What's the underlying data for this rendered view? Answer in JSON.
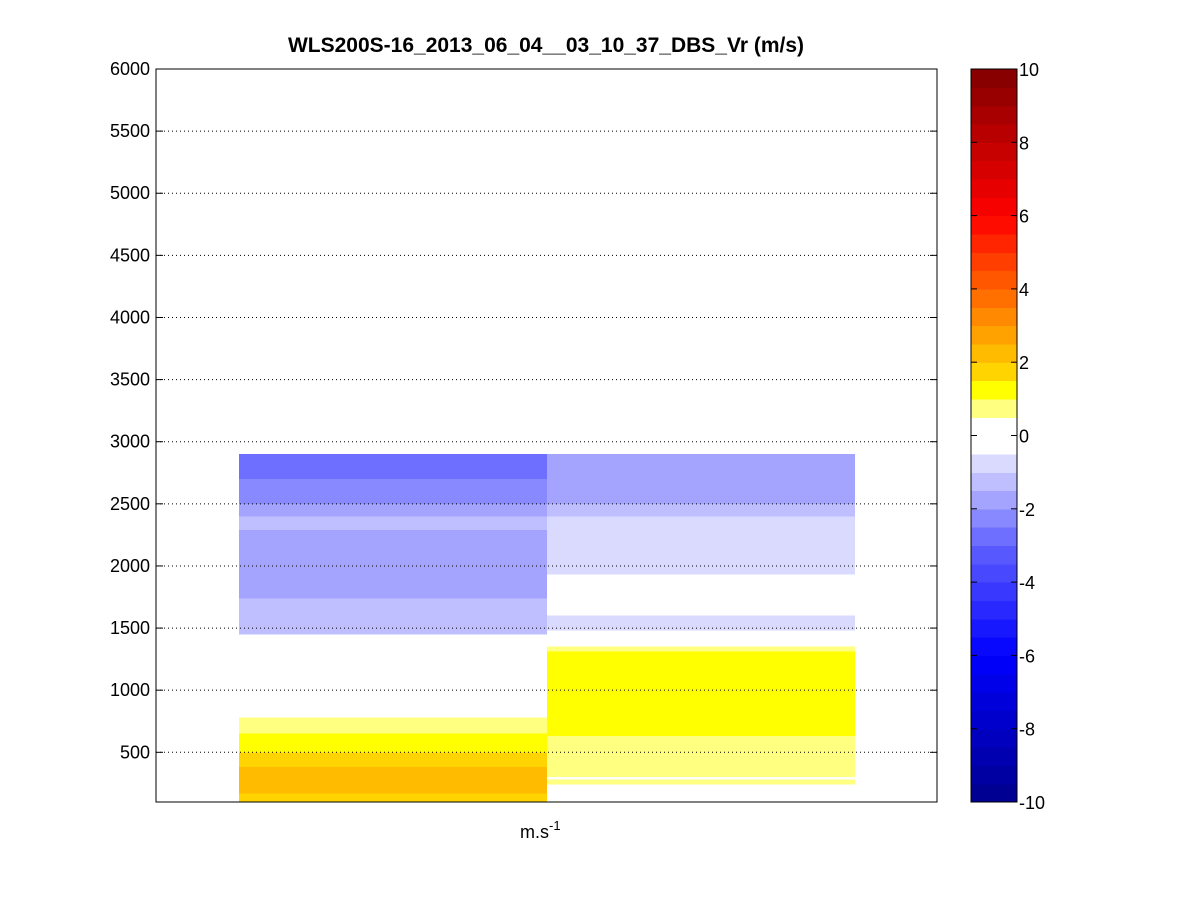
{
  "chart_data": {
    "type": "heatmap",
    "title": "WLS200S-16_2013_06_04__03_10_37_DBS_Vr (m/s)",
    "xlabel": "m.s",
    "xlabel_superscript": "-1",
    "ylabel": "",
    "ylim": [
      100,
      6000
    ],
    "yticks": [
      500,
      1000,
      1500,
      2000,
      2500,
      3000,
      3500,
      4000,
      4500,
      5000,
      5500,
      6000
    ],
    "grid": "horizontal dotted",
    "colorbar": {
      "range": [
        -10,
        10
      ],
      "ticks": [
        -10,
        -8,
        -6,
        -4,
        -2,
        0,
        2,
        4,
        6,
        8,
        10
      ],
      "colormap": "blue-white-yellow-red",
      "levels": 40
    },
    "columns": [
      {
        "segments": [
          {
            "y0": 100,
            "y1": 170,
            "v": 1.5
          },
          {
            "y0": 170,
            "y1": 380,
            "v": 2.0
          },
          {
            "y0": 380,
            "y1": 500,
            "v": 1.5
          },
          {
            "y0": 500,
            "y1": 650,
            "v": 1.1
          },
          {
            "y0": 650,
            "y1": 780,
            "v": 0.6
          },
          {
            "y0": 1100,
            "y1": 1450,
            "v": -0.4
          },
          {
            "y0": 1450,
            "y1": 1600,
            "v": -1.2
          },
          {
            "y0": 1600,
            "y1": 1740,
            "v": -1.5
          },
          {
            "y0": 1740,
            "y1": 2290,
            "v": -1.9
          },
          {
            "y0": 2290,
            "y1": 2400,
            "v": -1.5
          },
          {
            "y0": 2400,
            "y1": 2500,
            "v": -1.8
          },
          {
            "y0": 2500,
            "y1": 2700,
            "v": -2.1
          },
          {
            "y0": 2700,
            "y1": 2900,
            "v": -2.6
          }
        ]
      },
      {
        "segments": [
          {
            "y0": 120,
            "y1": 150,
            "v": -0.4
          },
          {
            "y0": 240,
            "y1": 280,
            "v": 0.6
          },
          {
            "y0": 300,
            "y1": 630,
            "v": 0.6
          },
          {
            "y0": 630,
            "y1": 1050,
            "v": 1.1
          },
          {
            "y0": 1050,
            "y1": 1150,
            "v": 1.3
          },
          {
            "y0": 1150,
            "y1": 1270,
            "v": 1.1
          },
          {
            "y0": 1270,
            "y1": 1310,
            "v": 1.3
          },
          {
            "y0": 1310,
            "y1": 1350,
            "v": 0.6
          },
          {
            "y0": 1380,
            "y1": 1420,
            "v": -0.4
          },
          {
            "y0": 1480,
            "y1": 1600,
            "v": -0.9
          },
          {
            "y0": 1600,
            "y1": 1930,
            "v": -0.4
          },
          {
            "y0": 1930,
            "y1": 2400,
            "v": -0.9
          },
          {
            "y0": 2400,
            "y1": 2500,
            "v": -1.5
          },
          {
            "y0": 2500,
            "y1": 2900,
            "v": -1.8
          }
        ]
      }
    ]
  }
}
